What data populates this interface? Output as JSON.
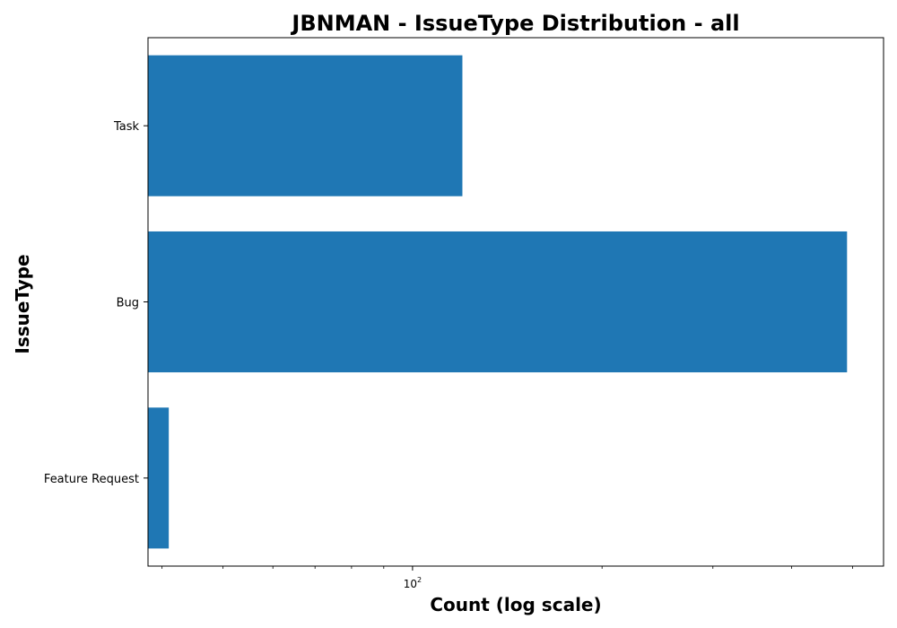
{
  "chart_data": {
    "type": "bar",
    "orientation": "horizontal",
    "title": "JBNMAN - IssueType Distribution - all",
    "xlabel": "Count (log scale)",
    "ylabel": "IssueType",
    "x_scale": "log",
    "xlim": [
      38,
      560
    ],
    "x_major_ticks": [
      {
        "base": "10",
        "exp": "2",
        "value": 100
      }
    ],
    "x_minor_ticks": [
      40,
      50,
      60,
      70,
      80,
      90,
      200,
      300,
      400,
      500
    ],
    "categories": [
      "Task",
      "Bug",
      "Feature Request"
    ],
    "values": [
      120,
      490,
      41
    ],
    "bar_color": "#1f77b4",
    "grid": false
  }
}
